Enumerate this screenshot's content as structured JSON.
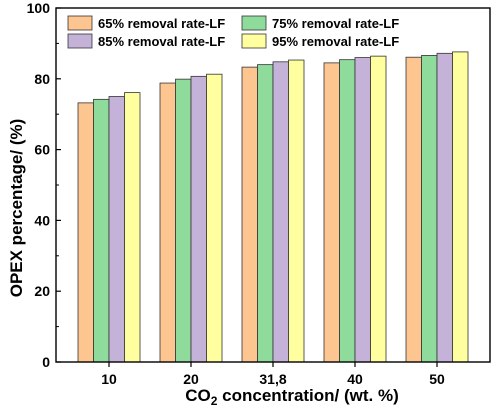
{
  "chart_data": {
    "type": "bar",
    "categories": [
      "10",
      "20",
      "31,8",
      "40",
      "50"
    ],
    "series": [
      {
        "name": "65% removal rate-LF",
        "color": "#FDC58F",
        "values": [
          73.2,
          78.8,
          83.3,
          84.5,
          86.1
        ]
      },
      {
        "name": "75% removal rate-LF",
        "color": "#8FDB9C",
        "values": [
          74.2,
          79.9,
          84.0,
          85.4,
          86.6
        ]
      },
      {
        "name": "85% removal rate-LF",
        "color": "#C5B2D8",
        "values": [
          75.0,
          80.7,
          84.8,
          86.0,
          87.2
        ]
      },
      {
        "name": "95% removal rate-LF",
        "color": "#FFFFA0",
        "values": [
          76.1,
          81.3,
          85.3,
          86.4,
          87.6
        ]
      }
    ],
    "title": "",
    "xlabel_main": "CO",
    "xlabel_sub": "2",
    "xlabel_rest": " concentration/ (wt. %)",
    "ylabel": "OPEX percentage/ (%)",
    "ylim": [
      0,
      100
    ],
    "yticks": [
      "0",
      "20",
      "40",
      "60",
      "80",
      "100"
    ],
    "grid": false,
    "legend_position": "top-left",
    "bar_edge_color": "#333333"
  }
}
